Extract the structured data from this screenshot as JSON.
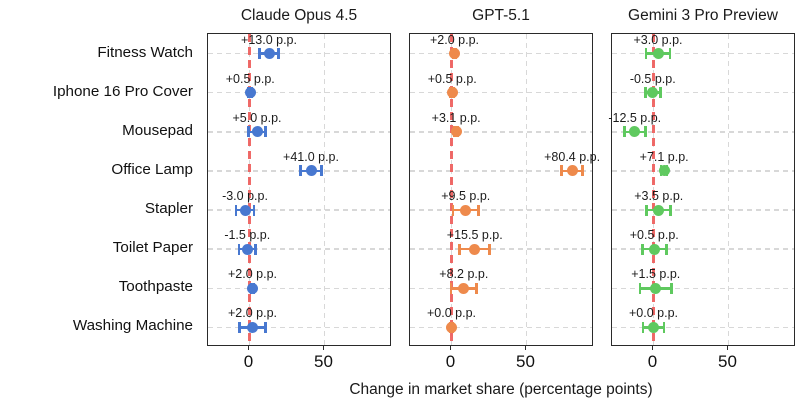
{
  "figure_title": "",
  "colors": {
    "claude_blue": "#4878d0",
    "gpt_orange": "#ee8a4c",
    "gemini_green": "#5fc95f",
    "zero_line_red": "#ee5d5b",
    "grid_gray": "#d8d8d8",
    "axis_border": "#2a2a2a",
    "text": "#1a1a1a"
  },
  "chart_data": {
    "type": "scatter",
    "subtype": "horizontal-dot-plot-with-error-bars",
    "categories": [
      "Fitness Watch",
      "Iphone 16 Pro Cover",
      "Mousepad",
      "Office Lamp",
      "Stapler",
      "Toilet Paper",
      "Toothpaste",
      "Washing Machine"
    ],
    "xlabel": "Change in market share (percentage points)",
    "x_ticks": [
      0,
      50
    ],
    "x_tick_labels": [
      "0",
      "50"
    ],
    "xlim": [
      -27.7,
      95
    ],
    "zero_reference_line": 0,
    "grid": "dashed gray horizontal per category and vertical at x ticks",
    "panels": [
      {
        "title": "Claude Opus 4.5",
        "color": "#4878d0",
        "values": [
          13.0,
          0.5,
          5.0,
          41.0,
          -3.0,
          -1.5,
          2.0,
          2.0
        ],
        "errors": [
          6.5,
          1,
          5.5,
          7,
          6,
          5.5,
          1,
          8.5
        ],
        "labels": [
          "+13.0 p.p.",
          "+0.5 p.p.",
          "+5.0 p.p.",
          "+41.0 p.p.",
          "-3.0 p.p.",
          "-1.5 p.p.",
          "+2.0 p.p.",
          "+2.0 p.p."
        ]
      },
      {
        "title": "GPT-5.1",
        "color": "#ee8a4c",
        "values": [
          2.0,
          0.5,
          3.1,
          80.4,
          9.5,
          15.5,
          8.2,
          0.0
        ],
        "errors": [
          1,
          1,
          1,
          7,
          8.5,
          10,
          8.5,
          1
        ],
        "labels": [
          "+2.0 p.p.",
          "+0.5 p.p.",
          "+3.1 p.p.",
          "+80.4 p.p.",
          "+9.5 p.p.",
          "+15.5 p.p.",
          "+8.2 p.p.",
          "+0.0 p.p."
        ]
      },
      {
        "title": "Gemini 3 Pro Preview",
        "color": "#5fc95f",
        "values": [
          3.0,
          -0.5,
          -12.5,
          7.1,
          3.5,
          0.5,
          1.5,
          0.0
        ],
        "errors": [
          8,
          5,
          7,
          2,
          8,
          8,
          10.5,
          7
        ],
        "labels": [
          "+3.0 p.p.",
          "-0.5 p.p.",
          "-12.5 p.p.",
          "+7.1 p.p.",
          "+3.5 p.p.",
          "+0.5 p.p.",
          "+1.5 p.p.",
          "+0.0 p.p."
        ]
      }
    ]
  }
}
